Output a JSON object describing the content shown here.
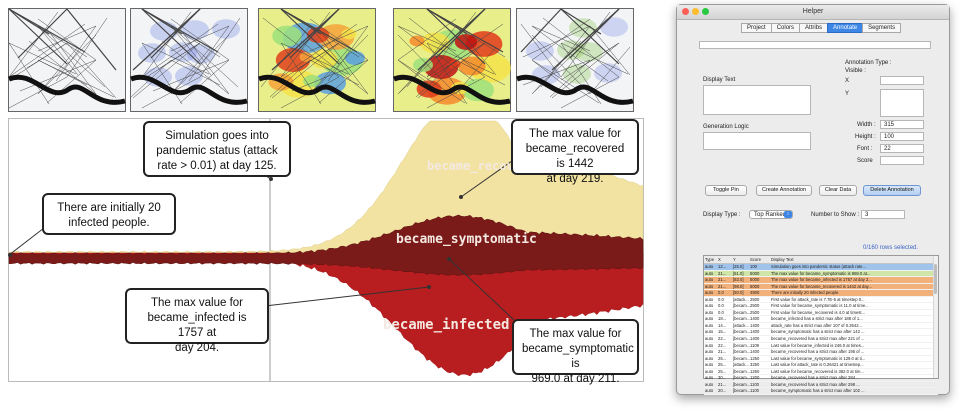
{
  "thumbnails": [
    {
      "name": "map-day-1",
      "style": "gray"
    },
    {
      "name": "map-day-2",
      "style": "blue"
    },
    {
      "name": "map-day-3",
      "style": "heat-medium"
    },
    {
      "name": "map-day-4",
      "style": "heat-high"
    },
    {
      "name": "map-day-5",
      "style": "green"
    }
  ],
  "stream": {
    "labels": {
      "recovered": "became_recovered",
      "symptomatic": "became_symptomatic",
      "infected": "became_infected"
    },
    "colors": {
      "recovered": "#f2e3a3",
      "symptomatic": "#7a1b1a",
      "infected": "#b81d1f"
    },
    "annotations": {
      "initial": [
        "There are initially 20",
        "infected people."
      ],
      "pandemic": [
        "Simulation goes into",
        "pandemic status (attack",
        "rate > 0.01) at day 125."
      ],
      "recovered": [
        "The max value for",
        "became_recovered is 1442",
        "at day 219."
      ],
      "infected": [
        "The max value for",
        "became_infected is 1757 at",
        "day 204."
      ],
      "symptomatic": [
        "The max value for",
        "became_symptomatic is",
        "969.0 at day 211."
      ]
    }
  },
  "helper": {
    "title": "Helper",
    "tabs": [
      "Project",
      "Colors",
      "Attribs",
      "Annotate",
      "Segments"
    ],
    "selected_tab": "Annotate",
    "top_field_value": "",
    "display_text_label": "Display Text",
    "generation_logic_label": "Generation Logic",
    "annotation_type_label": "Annotation Type :",
    "visible_label": "Visible :",
    "x_label": "X",
    "y_label": "Y",
    "width_label": "Width :",
    "width_value": "315",
    "height_label": "Height :",
    "height_value": "100",
    "font_label": "Font :",
    "font_value": "22",
    "score_label": "Score",
    "buttons": {
      "toggle_pin": "Toggle Pin",
      "create": "Create Annotation",
      "clear": "Clear Data",
      "delete": "Delete Annotation"
    },
    "display_type_label": "Display Type :",
    "display_type_value": "Top Ranked",
    "number_to_show_label": "Number to Show :",
    "number_to_show_value": "3",
    "rows_selected": "0/160 rows selected.",
    "table": {
      "headers": [
        "Type",
        "X",
        "Y",
        "Score",
        "Display Text"
      ],
      "rows": [
        {
          "type": "auto",
          "x": "12...",
          "y": "[25.0]",
          "score": "100",
          "text": "Simulation goes into pandemic status (attack rate...",
          "color": "#9fc3ea"
        },
        {
          "type": "auto",
          "x": "21...",
          "y": "[51.0]",
          "score": "5000",
          "text": "The max value for became_symptomatic is 969.0 at...",
          "color": "#cfe6a8"
        },
        {
          "type": "auto",
          "x": "21...",
          "y": "[83.0]",
          "score": "5000",
          "text": "The max value for became_infected is 1757 at day 2...",
          "color": "#f2b07a"
        },
        {
          "type": "auto",
          "x": "21...",
          "y": "[98.0]",
          "score": "5000",
          "text": "The max value for became_recovered is 1442 at day...",
          "color": "#f2b07a"
        },
        {
          "type": "auto",
          "x": "0.0",
          "y": "[50.0]",
          "score": "4900",
          "text": "There are initially 20 infected people.",
          "color": "#f2b07a"
        },
        {
          "type": "auto",
          "x": "0.0",
          "y": "[attack...",
          "score": "2500",
          "text": "First value for attack_rate is 7.7E-5 at timestep 0...",
          "color": ""
        },
        {
          "type": "auto",
          "x": "0.0",
          "y": "[becam...",
          "score": "2500",
          "text": "First value for became_symptomatic is 11.0 at time...",
          "color": ""
        },
        {
          "type": "auto",
          "x": "0.0",
          "y": "[becam...",
          "score": "2500",
          "text": "First value for became_recovered is 4.0 at timest...",
          "color": ""
        },
        {
          "type": "auto",
          "x": "18...",
          "y": "[becam...",
          "score": "1400",
          "text": "became_infected has a strict max after 188 of 1...",
          "color": ""
        },
        {
          "type": "auto",
          "x": "14...",
          "y": "[attack...",
          "score": "1400",
          "text": "attack_rate has a strict max after 107 of 0.2642...",
          "color": ""
        },
        {
          "type": "auto",
          "x": "15...",
          "y": "[becam...",
          "score": "1400",
          "text": "became_symptomatic has a strict max after 142 ...",
          "color": ""
        },
        {
          "type": "auto",
          "x": "22...",
          "y": "[becam...",
          "score": "1400",
          "text": "became_recovered has a strict max after 221 of ...",
          "color": ""
        },
        {
          "type": "auto",
          "x": "22...",
          "y": "[becam...",
          "score": "1109",
          "text": "Last value for became_infected is 246.0 at times...",
          "color": ""
        },
        {
          "type": "auto",
          "x": "21...",
          "y": "[becam...",
          "score": "1400",
          "text": "became_recovered has a strict max after 195 of ...",
          "color": ""
        },
        {
          "type": "auto",
          "x": "25...",
          "y": "[becam...",
          "score": "1250",
          "text": "Last value for became_symptomatic is 129.0 at ti...",
          "color": ""
        },
        {
          "type": "auto",
          "x": "25...",
          "y": "[attack...",
          "score": "3250",
          "text": "Last value for attack_rate is 0.26421 at timestep...",
          "color": ""
        },
        {
          "type": "auto",
          "x": "25...",
          "y": "[becam...",
          "score": "1250",
          "text": "Last value for became_recovered is 382.0 at tim...",
          "color": ""
        },
        {
          "type": "auto",
          "x": "30...",
          "y": "[becam...",
          "score": "1200",
          "text": "became_recovered has a strict max after 284 ...",
          "color": ""
        },
        {
          "type": "auto",
          "x": "21...",
          "y": "[becam...",
          "score": "1100",
          "text": "became_recovered has a strict max after 298 ...",
          "color": ""
        },
        {
          "type": "auto",
          "x": "20...",
          "y": "[becam...",
          "score": "1100",
          "text": "became_symptomatic has a strict max after 102 ...",
          "color": ""
        }
      ]
    }
  }
}
